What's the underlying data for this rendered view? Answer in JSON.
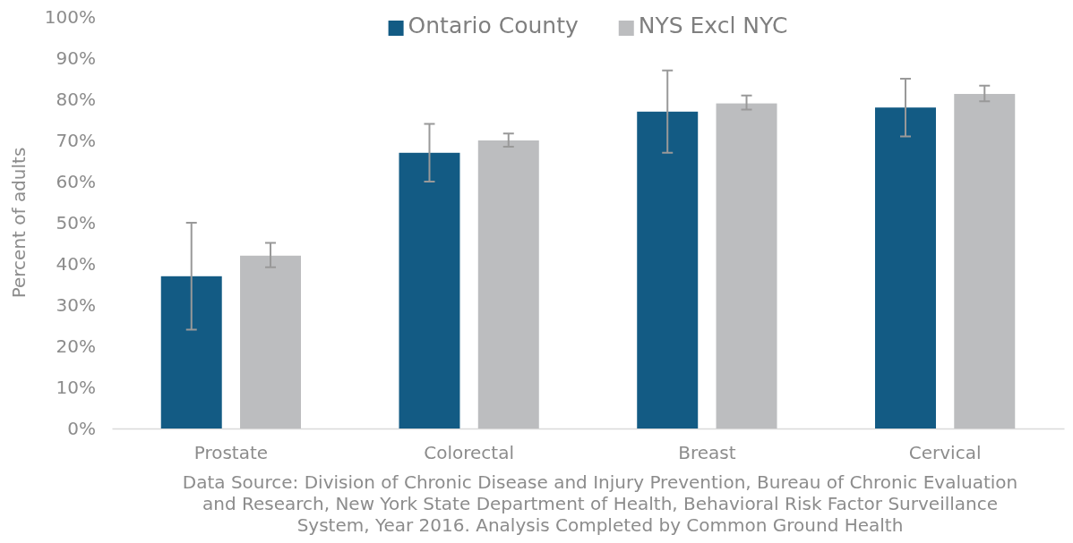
{
  "chart_data": {
    "type": "bar",
    "ylabel": "Percent of adults",
    "categories": [
      "Prostate",
      "Colorectal",
      "Breast",
      "Cervical"
    ],
    "series": [
      {
        "name": "Ontario County",
        "color": "#135b84",
        "values": [
          37,
          67,
          77,
          78
        ],
        "errors": [
          [
            24,
            50
          ],
          [
            60,
            74
          ],
          [
            67,
            87
          ],
          [
            71,
            85
          ]
        ]
      },
      {
        "name": "NYS Excl NYC",
        "color": "#bcbdbf",
        "values": [
          42,
          70,
          79,
          81.3
        ],
        "errors": [
          [
            39.2,
            45.1
          ],
          [
            68.5,
            71.7
          ],
          [
            77.5,
            80.9
          ],
          [
            79.5,
            83.3
          ]
        ]
      }
    ],
    "ylim": [
      0,
      100
    ],
    "yticks": [
      {
        "value": 0,
        "label": "0%"
      },
      {
        "value": 10,
        "label": "10%"
      },
      {
        "value": 20,
        "label": "20%"
      },
      {
        "value": 30,
        "label": "30%"
      },
      {
        "value": 40,
        "label": "40%"
      },
      {
        "value": 50,
        "label": "50%"
      },
      {
        "value": 60,
        "label": "60%"
      },
      {
        "value": 70,
        "label": "70%"
      },
      {
        "value": 80,
        "label": "80%"
      },
      {
        "value": 90,
        "label": "90%"
      },
      {
        "value": 100,
        "label": "100%"
      }
    ],
    "legend": "top",
    "grid": false,
    "annotations": [
      "Data Source: Division of Chronic Disease and Injury Prevention, Bureau of Chronic Evaluation and Research, New York State Department of Health, Behavioral Risk Factor Surveillance System, Year 2016. Analysis Completed by Common Ground Health"
    ]
  }
}
